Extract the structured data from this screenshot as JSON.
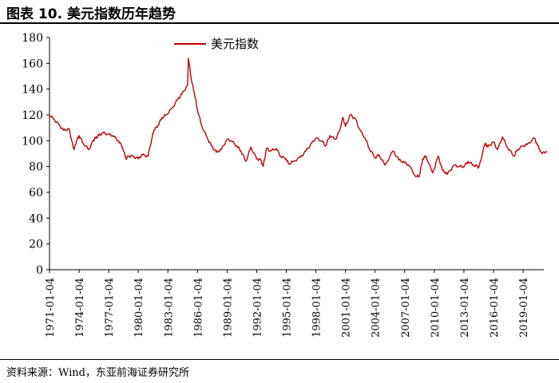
{
  "figure": {
    "title": "图表 10. 美元指数历年趋势",
    "source": "资料来源：Wind，东亚前海证券研究所"
  },
  "colors": {
    "series": "#c00000",
    "axis": "#000000"
  },
  "chart_data": {
    "type": "line",
    "title": "",
    "xlabel": "",
    "ylabel": "",
    "ylim": [
      0,
      180
    ],
    "yticks": [
      0,
      20,
      40,
      60,
      80,
      100,
      120,
      140,
      160,
      180
    ],
    "xticks": [
      "1971-01-04",
      "1974-01-04",
      "1977-01-04",
      "1980-01-04",
      "1983-01-04",
      "1986-01-04",
      "1989-01-04",
      "1992-01-04",
      "1995-01-04",
      "1998-01-04",
      "2001-01-04",
      "2004-01-04",
      "2007-01-04",
      "2010-01-04",
      "2013-01-04",
      "2016-01-04",
      "2019-01-04"
    ],
    "grid": false,
    "legend": "top",
    "series": [
      {
        "name": "美元指数",
        "x": [
          "1971-01",
          "1971-06",
          "1972-01",
          "1972-06",
          "1973-01",
          "1973-04",
          "1973-07",
          "1973-10",
          "1974-01",
          "1974-06",
          "1975-01",
          "1975-06",
          "1975-09",
          "1976-01",
          "1976-06",
          "1977-01",
          "1977-06",
          "1978-01",
          "1978-06",
          "1978-10",
          "1979-01",
          "1979-06",
          "1980-01",
          "1980-06",
          "1981-01",
          "1981-06",
          "1981-08",
          "1982-01",
          "1982-06",
          "1982-11",
          "1983-06",
          "1984-01",
          "1984-06",
          "1985-01",
          "1985-02",
          "1985-06",
          "1985-09",
          "1986-01",
          "1986-06",
          "1987-01",
          "1987-06",
          "1987-12",
          "1988-06",
          "1989-01",
          "1989-06",
          "1990-01",
          "1990-06",
          "1990-12",
          "1991-06",
          "1992-01",
          "1992-06",
          "1992-09",
          "1993-01",
          "1993-06",
          "1994-01",
          "1994-06",
          "1995-01",
          "1995-04",
          "1995-10",
          "1996-06",
          "1997-01",
          "1997-08",
          "1998-01",
          "1998-08",
          "1999-01",
          "1999-06",
          "2000-01",
          "2000-06",
          "2000-10",
          "2001-01",
          "2001-07",
          "2002-01",
          "2002-06",
          "2003-01",
          "2003-06",
          "2004-01",
          "2004-06",
          "2005-01",
          "2005-11",
          "2006-06",
          "2007-01",
          "2007-06",
          "2008-03",
          "2008-07",
          "2008-11",
          "2009-03",
          "2009-11",
          "2010-06",
          "2010-11",
          "2011-05",
          "2012-01",
          "2012-07",
          "2013-01",
          "2013-06",
          "2014-01",
          "2014-06",
          "2014-07",
          "2015-03",
          "2015-06",
          "2016-01",
          "2016-06",
          "2016-12",
          "2017-06",
          "2018-02",
          "2018-06",
          "2019-01",
          "2019-06",
          "2020-03",
          "2020-06",
          "2020-12",
          "2021-06"
        ],
        "values": [
          120,
          117,
          112,
          108,
          109,
          100,
          93,
          100,
          104,
          98,
          93,
          100,
          102,
          104,
          106,
          105,
          104,
          100,
          95,
          86,
          88,
          88,
          86,
          89,
          88,
          103,
          108,
          112,
          118,
          120,
          125,
          132,
          136,
          143,
          164,
          146,
          138,
          124,
          112,
          102,
          96,
          91,
          93,
          101,
          100,
          96,
          92,
          84,
          95,
          86,
          85,
          80,
          94,
          92,
          94,
          88,
          86,
          82,
          84,
          87,
          92,
          98,
          102,
          100,
          96,
          104,
          101,
          108,
          118,
          111,
          120,
          117,
          109,
          102,
          94,
          87,
          89,
          81,
          92,
          85,
          83,
          81,
          72,
          73,
          86,
          88,
          75,
          88,
          77,
          74,
          81,
          80,
          80,
          84,
          81,
          80,
          79,
          98,
          95,
          99,
          93,
          103,
          95,
          88,
          93,
          96,
          97,
          102,
          97,
          90,
          92
        ]
      }
    ]
  }
}
